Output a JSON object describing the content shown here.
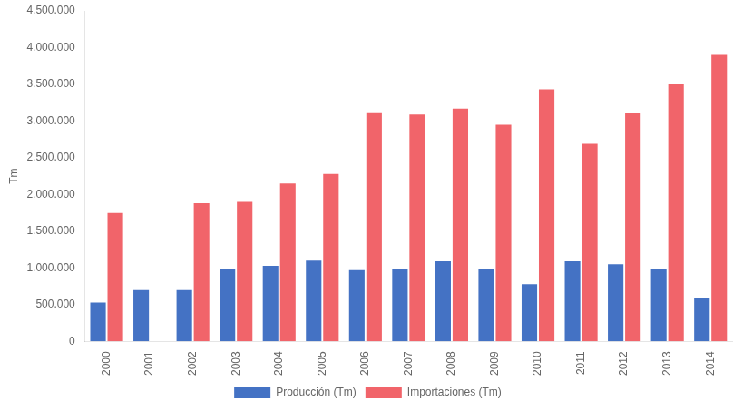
{
  "chart_data": {
    "type": "bar",
    "categories": [
      "2000",
      "2001",
      "2002",
      "2003",
      "2004",
      "2005",
      "2006",
      "2007",
      "2008",
      "2009",
      "2010",
      "2011",
      "2012",
      "2013",
      "2014"
    ],
    "series": [
      {
        "name": "Producción (Tm)",
        "color": "#4472C4",
        "values": [
          530000,
          700000,
          700000,
          980000,
          1030000,
          1100000,
          970000,
          990000,
          1090000,
          980000,
          780000,
          1090000,
          1050000,
          990000,
          590000
        ]
      },
      {
        "name": "Importaciones (Tm)",
        "color": "#F1646A",
        "values": [
          1750000,
          0,
          1880000,
          1900000,
          2150000,
          2280000,
          3120000,
          3090000,
          3170000,
          2950000,
          3430000,
          2690000,
          3110000,
          3500000,
          3900000
        ]
      }
    ],
    "ylabel": "Tm",
    "ylim": [
      0,
      4500000
    ],
    "yticks": [
      0,
      {
        "value": 500000,
        "label": "500.000"
      },
      {
        "value": 1000000,
        "label": "1.000.000"
      },
      {
        "value": 1500000,
        "label": "1.500.000"
      },
      {
        "value": 2000000,
        "label": "2.000.000"
      },
      {
        "value": 2500000,
        "label": "2.500.000"
      },
      {
        "value": 3000000,
        "label": "3.000.000"
      },
      {
        "value": 3500000,
        "label": "3.500.000"
      },
      {
        "value": 4000000,
        "label": "4.000.000"
      },
      {
        "value": 4500000,
        "label": "4.500.000"
      }
    ],
    "grid": false,
    "legend": "bottom"
  }
}
